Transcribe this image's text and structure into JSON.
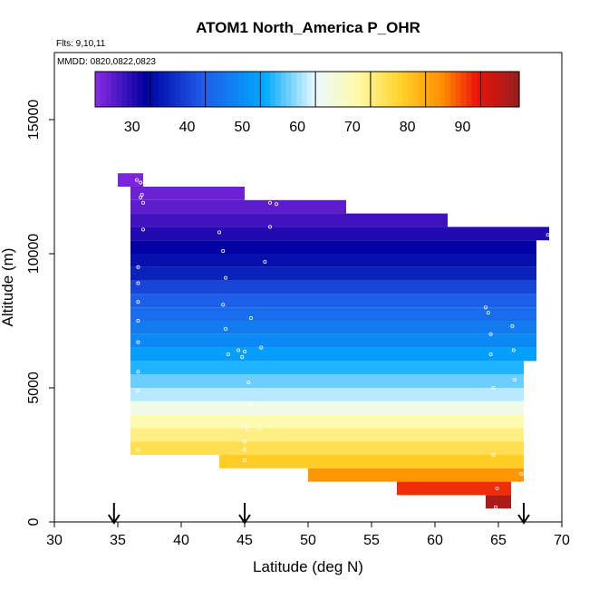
{
  "chart_data": {
    "type": "heatmap",
    "title": "ATOM1 North_America P_OHR",
    "flights_label": "Flts: 9,10,11",
    "dates_label": "MMDD: 0820,0822,0823",
    "xlabel": "Latitude (deg N)",
    "ylabel": "Altitude (m)",
    "xlim": [
      30,
      70
    ],
    "ylim": [
      0,
      17500
    ],
    "x_ticks": [
      30,
      35,
      40,
      45,
      50,
      55,
      60,
      65,
      70
    ],
    "y_ticks": [
      0,
      5000,
      10000,
      15000
    ],
    "colorbar": {
      "range": [
        20,
        97
      ],
      "ticks": [
        30,
        40,
        50,
        60,
        70,
        80,
        90
      ]
    },
    "cell_height_m": 500,
    "rows": [
      {
        "alt": 12750,
        "lat": [
          35,
          37
        ],
        "v": 21
      },
      {
        "alt": 12250,
        "lat": [
          36,
          45
        ],
        "v": 22
      },
      {
        "alt": 11750,
        "lat": [
          36,
          53
        ],
        "v": 23
      },
      {
        "alt": 11250,
        "lat": [
          36,
          61
        ],
        "v": 25
      },
      {
        "alt": 10750,
        "lat": [
          36,
          69
        ],
        "v": 27
      },
      {
        "alt": 10250,
        "lat": [
          36,
          68
        ],
        "v": 29
      },
      {
        "alt": 9750,
        "lat": [
          36,
          68
        ],
        "v": 31
      },
      {
        "alt": 9250,
        "lat": [
          36,
          68
        ],
        "v": 33
      },
      {
        "alt": 8750,
        "lat": [
          36,
          68
        ],
        "v": 37
      },
      {
        "alt": 8250,
        "lat": [
          36,
          68
        ],
        "v": 40
      },
      {
        "alt": 7750,
        "lat": [
          36,
          68
        ],
        "v": 42
      },
      {
        "alt": 7250,
        "lat": [
          36,
          68
        ],
        "v": 44
      },
      {
        "alt": 6750,
        "lat": [
          36,
          68
        ],
        "v": 46
      },
      {
        "alt": 6250,
        "lat": [
          36,
          68
        ],
        "v": 49
      },
      {
        "alt": 5750,
        "lat": [
          36,
          67
        ],
        "v": 52
      },
      {
        "alt": 5250,
        "lat": [
          36,
          67
        ],
        "v": 55
      },
      {
        "alt": 4750,
        "lat": [
          36,
          67
        ],
        "v": 58
      },
      {
        "alt": 4250,
        "lat": [
          36,
          67
        ],
        "v": 62
      },
      {
        "alt": 3750,
        "lat": [
          36,
          67
        ],
        "v": 67
      },
      {
        "alt": 3250,
        "lat": [
          36,
          67
        ],
        "v": 70
      },
      {
        "alt": 2750,
        "lat": [
          36,
          67
        ],
        "v": 73
      },
      {
        "alt": 2250,
        "lat": [
          43,
          67
        ],
        "v": 76
      },
      {
        "alt": 1750,
        "lat": [
          50,
          67
        ],
        "v": 82
      },
      {
        "alt": 1250,
        "lat": [
          57,
          66
        ],
        "v": 88
      },
      {
        "alt": 750,
        "lat": [
          64,
          66
        ],
        "v": 95
      }
    ],
    "arrows_lat": [
      34.7,
      45,
      67
    ],
    "sample_points": [
      [
        36.5,
        12750
      ],
      [
        36.8,
        12650
      ],
      [
        36.9,
        12200
      ],
      [
        36.8,
        12100
      ],
      [
        37,
        11900
      ],
      [
        47,
        11900
      ],
      [
        47.5,
        11850
      ],
      [
        37,
        10900
      ],
      [
        43,
        10800
      ],
      [
        47,
        11000
      ],
      [
        68.9,
        10700
      ],
      [
        43.3,
        10100
      ],
      [
        46.6,
        9700
      ],
      [
        36.6,
        9500
      ],
      [
        43.5,
        9100
      ],
      [
        36.6,
        8900
      ],
      [
        36.6,
        8200
      ],
      [
        43.3,
        8100
      ],
      [
        64,
        8000
      ],
      [
        64.2,
        7800
      ],
      [
        36.6,
        7500
      ],
      [
        45.5,
        7600
      ],
      [
        43.5,
        7200
      ],
      [
        64.4,
        7000
      ],
      [
        66.1,
        7300
      ],
      [
        36.6,
        6700
      ],
      [
        44.5,
        6400
      ],
      [
        45,
        6350
      ],
      [
        46.3,
        6500
      ],
      [
        43.7,
        6250
      ],
      [
        44.8,
        6150
      ],
      [
        64.4,
        6250
      ],
      [
        66.2,
        6400
      ],
      [
        36.6,
        5600
      ],
      [
        45.3,
        5200
      ],
      [
        66.3,
        5300
      ],
      [
        64.6,
        5000
      ],
      [
        36.6,
        4900
      ],
      [
        45.4,
        4400
      ],
      [
        45,
        3600
      ],
      [
        46.2,
        3500
      ],
      [
        45.2,
        3450
      ],
      [
        45,
        3000
      ],
      [
        36.6,
        2700
      ],
      [
        45,
        2700
      ],
      [
        45,
        2300
      ],
      [
        64.6,
        2500
      ],
      [
        66.8,
        1800
      ],
      [
        64.9,
        1250
      ],
      [
        64.8,
        550
      ]
    ]
  }
}
